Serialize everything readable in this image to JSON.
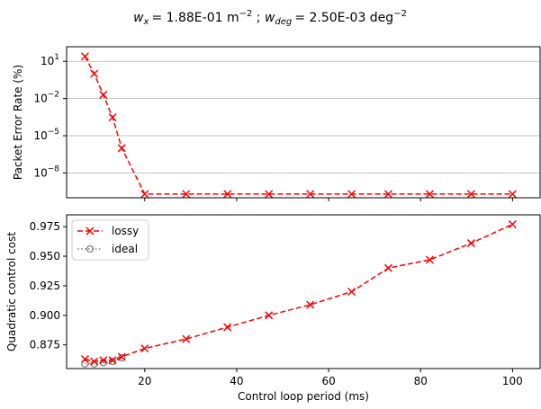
{
  "figure": {
    "title": {
      "w_symbol": "w",
      "w_x_sub": "x",
      "w_x_value": "= 1.88E-01  m",
      "w_x_exp": "−2",
      "separator": " ; ",
      "w_deg_sub": "deg",
      "w_deg_value": "= 2.50E-03 deg",
      "w_deg_exp": "−2"
    }
  },
  "chart_data": [
    {
      "type": "line",
      "ylabel": "Packet Error Rate (%)",
      "xlabel": "",
      "yscale": "log",
      "xlim": [
        3,
        106
      ],
      "ylim": [
        1e-10,
        150
      ],
      "grid": "y",
      "yticks": [
        {
          "value": 10,
          "base": "10",
          "exp": "1"
        },
        {
          "value": 0.01,
          "base": "10",
          "exp": "−2"
        },
        {
          "value": 1e-05,
          "base": "10",
          "exp": "−5"
        },
        {
          "value": 1e-08,
          "base": "10",
          "exp": "−8"
        }
      ],
      "xticks": [
        20,
        40,
        60,
        80,
        100
      ],
      "series": [
        {
          "name": "",
          "color": "#ff0000",
          "style": "dashed",
          "marker": "x",
          "x": [
            7,
            9,
            11,
            13,
            15,
            20,
            29,
            38,
            47,
            56,
            65,
            73,
            82,
            91,
            100
          ],
          "y": [
            25,
            1,
            0.02,
            0.0003,
            1e-06,
            2e-10,
            2e-10,
            2e-10,
            2e-10,
            2e-10,
            2e-10,
            2e-10,
            2e-10,
            2e-10,
            2e-10
          ]
        }
      ]
    },
    {
      "type": "line",
      "ylabel": "Quadratic control cost",
      "xlabel": "Control loop period (ms)",
      "xlim": [
        3,
        106
      ],
      "ylim": [
        0.855,
        0.985
      ],
      "yticks": [
        0.875,
        0.9,
        0.925,
        0.95,
        0.975
      ],
      "ytick_labels": [
        "0.875",
        "0.900",
        "0.925",
        "0.950",
        "0.975"
      ],
      "xticks": [
        20,
        40,
        60,
        80,
        100
      ],
      "xtick_labels": [
        "20",
        "40",
        "60",
        "80",
        "100"
      ],
      "legend": "top-left",
      "series": [
        {
          "name": "lossy",
          "color": "#ff0000",
          "style": "dashed",
          "marker": "x",
          "x": [
            7,
            9,
            11,
            13,
            15,
            20,
            29,
            38,
            47,
            56,
            65,
            73,
            82,
            91,
            100
          ],
          "y": [
            0.863,
            0.861,
            0.862,
            0.862,
            0.865,
            0.872,
            0.88,
            0.89,
            0.9,
            0.909,
            0.92,
            0.94,
            0.947,
            0.961,
            0.977
          ]
        },
        {
          "name": "ideal",
          "color": "#808080",
          "style": "dotted",
          "marker": "o",
          "x": [
            7,
            9,
            11,
            13,
            15
          ],
          "y": [
            0.859,
            0.859,
            0.86,
            0.861,
            0.864
          ]
        }
      ]
    }
  ]
}
